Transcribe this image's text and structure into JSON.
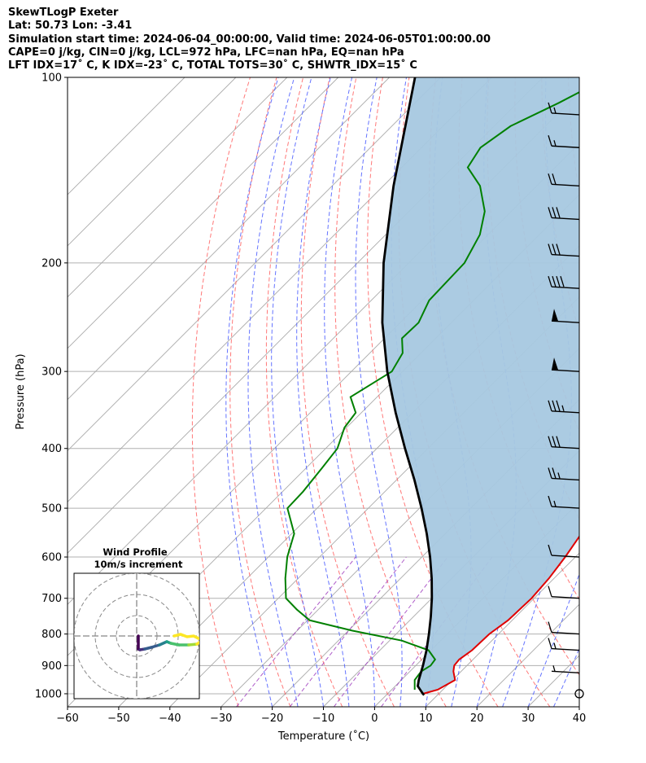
{
  "header": {
    "title": "SkewTLogP Exeter",
    "location": "Lat: 50.73   Lon: -3.41",
    "times": "Simulation start time: 2024-06-04_00:00:00, Valid time: 2024-06-05T01:00:00.00",
    "indices1": "CAPE=0 j/kg, CIN=0 j/kg, LCL=972 hPa, LFC=nan hPa, EQ=nan hPa",
    "indices2": "LFT IDX=17˚ C, K IDX=-23˚ C, TOTAL TOTS=30˚ C, SHWTR_IDX=15˚ C"
  },
  "chart_data": {
    "type": "line",
    "subtype": "skew-T log-p diagram",
    "xlabel": "Temperature (˚C)",
    "ylabel": "Pressure (hPa)",
    "xlim": [
      -60,
      40
    ],
    "ylim": [
      1050,
      100
    ],
    "y_scale": "log",
    "x_ticks": [
      -60,
      -50,
      -40,
      -30,
      -20,
      -10,
      0,
      10,
      20,
      30,
      40
    ],
    "x_tick_labels": [
      "−60",
      "−50",
      "−40",
      "−30",
      "−20",
      "−10",
      "0",
      "10",
      "20",
      "30",
      "40"
    ],
    "y_ticks": [
      1000,
      900,
      800,
      700,
      600,
      500,
      400,
      300,
      200,
      100
    ],
    "y_tick_labels": [
      "1000",
      "900",
      "800",
      "700",
      "600",
      "500",
      "400",
      "300",
      "200",
      "100"
    ],
    "grid": true,
    "colors": {
      "temperature": "#e00000",
      "dewpoint": "#008000",
      "parcel": "#000000",
      "fill": "#a6c8e0",
      "dry_adiabat": "#ff6060",
      "moist_adiabat": "#4a5cff",
      "mixing_ratio": "#a040c0",
      "isotherm": "#aaaaaa"
    },
    "series": [
      {
        "key": "temperature",
        "pressure": [
          1000,
          985,
          950,
          920,
          900,
          880,
          850,
          800,
          760,
          700,
          650,
          600,
          550,
          500,
          450,
          400,
          360,
          330,
          300,
          270,
          250,
          230,
          210,
          200,
          185,
          170,
          155,
          140,
          130,
          120,
          110,
          100
        ],
        "temp": [
          6.9,
          9,
          10.5,
          8.5,
          7.5,
          7.3,
          8,
          8.2,
          9.2,
          9.5,
          9,
          8,
          6.6,
          4.5,
          1.2,
          -3.2,
          -7.1,
          -10.7,
          -14.9,
          -19.5,
          -23.2,
          -27.3,
          -32.3,
          -35,
          -38.8,
          -42.8,
          -47.1,
          -52,
          -57,
          -60.7,
          -65,
          -69.5
        ]
      },
      {
        "key": "dewpoint",
        "pressure": [
          985,
          950,
          920,
          900,
          880,
          850,
          820,
          790,
          760,
          730,
          700,
          650,
          600,
          550,
          500,
          470,
          430,
          400,
          370,
          350,
          330,
          300,
          280,
          265,
          250,
          230,
          200,
          180,
          165,
          150,
          140,
          130,
          120,
          110,
          100
        ],
        "temp": [
          4.5,
          2.6,
          2.2,
          2.9,
          2.6,
          -0.5,
          -7.6,
          -19.2,
          -29.6,
          -34.2,
          -38.5,
          -42.5,
          -46.3,
          -49.5,
          -55.8,
          -56,
          -56.9,
          -57.7,
          -60.4,
          -61.1,
          -65.2,
          -62.1,
          -63.6,
          -66.6,
          -66.4,
          -68.7,
          -69.1,
          -71.6,
          -75.2,
          -81.1,
          -87.1,
          -88.5,
          -86.8,
          -81.9,
          -77.3
        ]
      },
      {
        "key": "parcel",
        "pressure": [
          1005,
          1000,
          972,
          950,
          900,
          850,
          800,
          750,
          700,
          650,
          600,
          550,
          500,
          450,
          400,
          350,
          300,
          250,
          200,
          150,
          100
        ],
        "temp": [
          7.4,
          6.9,
          4.4,
          3.4,
          1.4,
          -0.9,
          -3.6,
          -6.6,
          -10.0,
          -13.9,
          -18.4,
          -23.6,
          -29.6,
          -36.5,
          -44.5,
          -53.3,
          -63.0,
          -73.5,
          -84.9,
          -98.0,
          -115.0
        ]
      }
    ],
    "wind_barbs": [
      {
        "pressure": 1000,
        "speed_kt": 0
      },
      {
        "pressure": 925,
        "speed_kt": 5
      },
      {
        "pressure": 850,
        "speed_kt": 15
      },
      {
        "pressure": 800,
        "speed_kt": 10
      },
      {
        "pressure": 700,
        "speed_kt": 10
      },
      {
        "pressure": 600,
        "speed_kt": 10
      },
      {
        "pressure": 500,
        "speed_kt": 15
      },
      {
        "pressure": 450,
        "speed_kt": 25
      },
      {
        "pressure": 400,
        "speed_kt": 30
      },
      {
        "pressure": 350,
        "speed_kt": 35
      },
      {
        "pressure": 300,
        "speed_kt": 50
      },
      {
        "pressure": 250,
        "speed_kt": 50
      },
      {
        "pressure": 220,
        "speed_kt": 40
      },
      {
        "pressure": 195,
        "speed_kt": 30
      },
      {
        "pressure": 170,
        "speed_kt": 30
      },
      {
        "pressure": 150,
        "speed_kt": 20
      },
      {
        "pressure": 130,
        "speed_kt": 15
      },
      {
        "pressure": 115,
        "speed_kt": 15
      }
    ],
    "inset": {
      "title": "Wind Profile",
      "subtitle": "10m/s increment"
    }
  }
}
